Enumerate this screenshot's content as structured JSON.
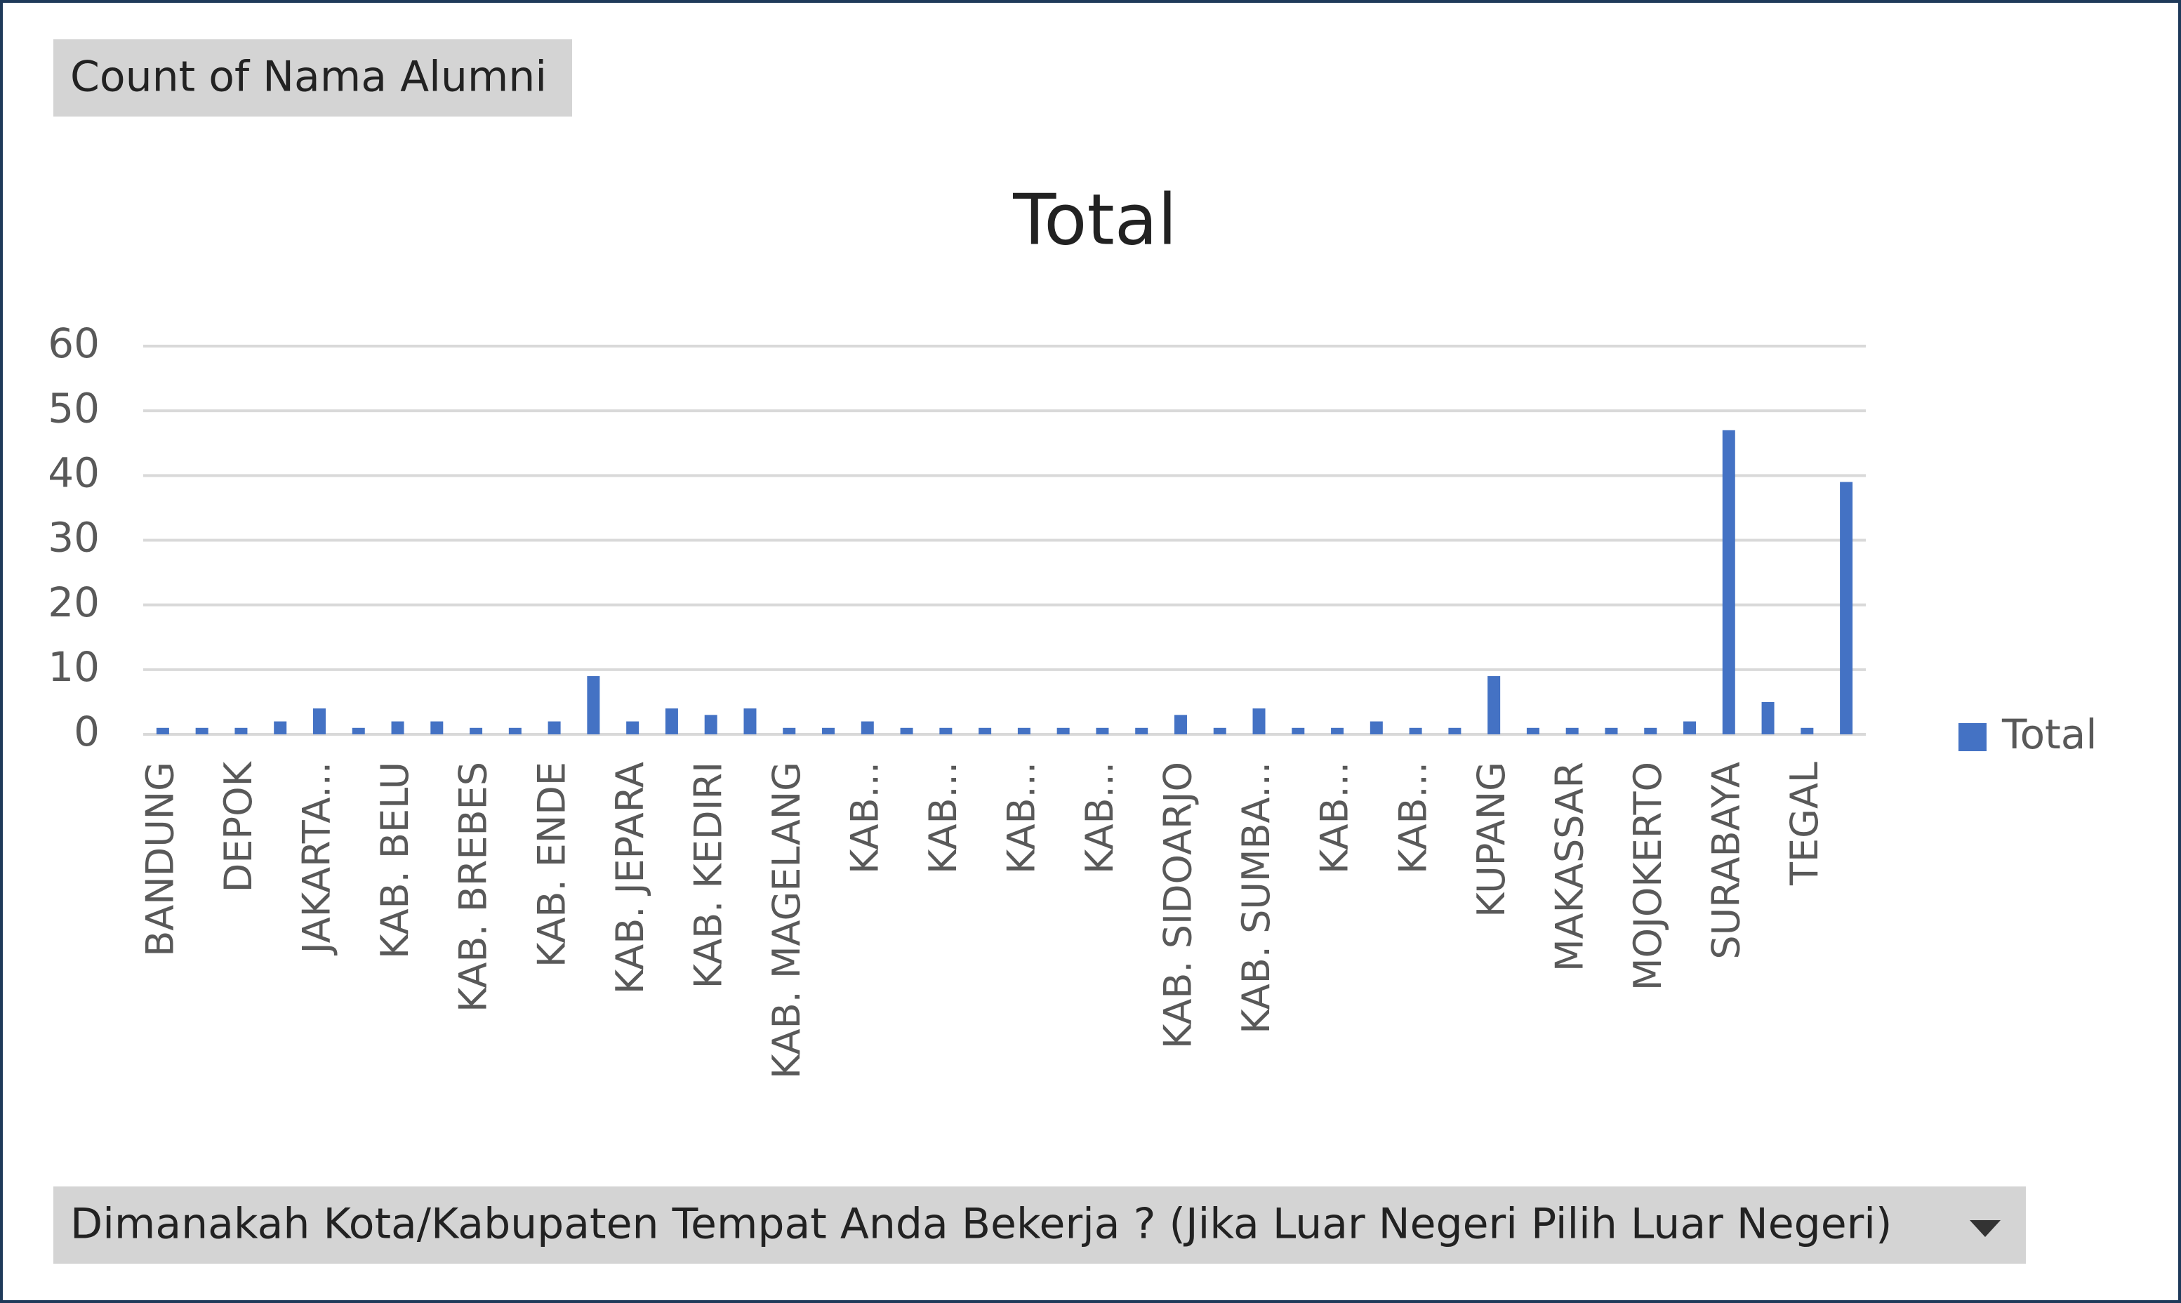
{
  "chart_data": {
    "type": "bar",
    "title": "Total",
    "value_field": "Count of Nama Alumni",
    "axis_field": "Dimanakah Kota/Kabupaten Tempat Anda Bekerja ? (Jika Luar Negeri Pilih Luar Negeri)",
    "categories": [
      "BANDUNG",
      null,
      "DEPOK",
      null,
      "JAKARTA...",
      null,
      "KAB. BELU",
      null,
      "KAB. BREBES",
      null,
      "KAB. ENDE",
      null,
      "KAB. JEPARA",
      null,
      "KAB. KEDIRI",
      null,
      "KAB. MAGELANG",
      null,
      "KAB...",
      null,
      "KAB...",
      null,
      "KAB...",
      null,
      "KAB...",
      null,
      "KAB. SIDOARJO",
      null,
      "KAB. SUMBA...",
      null,
      "KAB...",
      null,
      "KAB...",
      null,
      "KUPANG",
      null,
      "MAKASSAR",
      null,
      "MOJOKERTO",
      null,
      "SURABAYA",
      null,
      "TEGAL",
      null
    ],
    "series": [
      {
        "name": "Total",
        "color": "#4472c4",
        "values": [
          1,
          1,
          1,
          2,
          4,
          1,
          2,
          2,
          1,
          1,
          2,
          9,
          2,
          4,
          3,
          4,
          1,
          1,
          2,
          1,
          1,
          1,
          1,
          1,
          1,
          1,
          3,
          1,
          4,
          1,
          1,
          2,
          1,
          1,
          9,
          1,
          1,
          1,
          1,
          2,
          47,
          5,
          1,
          39
        ]
      }
    ],
    "ylim": [
      0,
      60
    ],
    "yticks": [
      0,
      10,
      20,
      30,
      40,
      50,
      60
    ],
    "grid": true,
    "legend": "right"
  }
}
